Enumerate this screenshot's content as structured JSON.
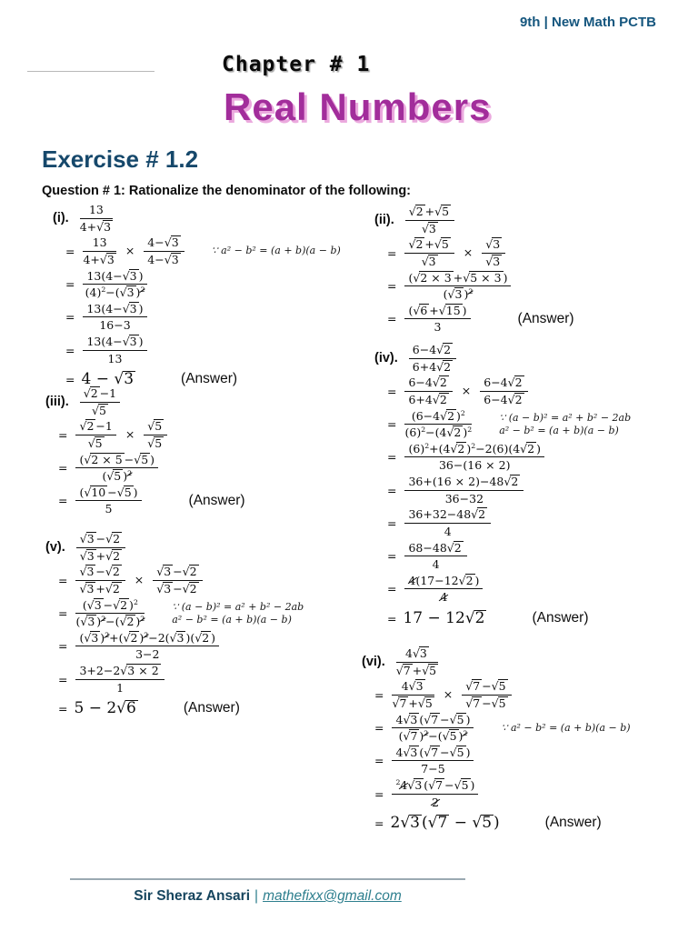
{
  "header": {
    "course": "9th | New Math PCTB",
    "chapter": "Chapter # 1",
    "title": "Real Numbers"
  },
  "exercise": {
    "heading": "Exercise # 1.2",
    "question": "Question # 1: Rationalize the denominator of the following:"
  },
  "colors": {
    "course_blue": "#15567E",
    "heading_teal": "#16486B",
    "title_pink": "#A22D9B",
    "title_pink_shadow": "#EBA9DE",
    "footer_teal": "#2E7F8E",
    "footer_navy": "#16455E"
  },
  "problems": [
    {
      "id": "i",
      "side": "left",
      "lines": [
        {
          "label": "(i).",
          "expr": "@f{13}{4+@r{3}}"
        },
        {
          "eq": "=",
          "expr": "@f{13}{4+@r{3}} @x @f{4−@r{3}}{4−@r{3}}",
          "notes": [
            "∵ a² − b² = (a + b)(a − b)"
          ]
        },
        {
          "eq": "=",
          "expr": "@f{13(4−@r{3})}{(4)@s{2}−(@r{3})@s{@k{2}}}"
        },
        {
          "eq": "=",
          "expr": "@f{13(4−@r{3})}{16−3}"
        },
        {
          "eq": "=",
          "expr": "@f{13(4−@r{3})}{13}"
        },
        {
          "eq": "=",
          "expr": "4 − @r{3}",
          "big": true,
          "answer": "(Answer)"
        }
      ]
    },
    {
      "id": "iii",
      "side": "left",
      "lines": [
        {
          "label": "(iii).",
          "expr": "@f{@r{2}−1}{@r{5}}"
        },
        {
          "eq": "=",
          "expr": "@f{@r{2}−1}{@r{5}} @x @f{@r{5}}{@r{5}}"
        },
        {
          "eq": "=",
          "expr": "@f{(@r{2@x5}−@r{5})}{(@r{5})@s{@k{2}}}"
        },
        {
          "eq": "=",
          "expr": "@f{(@r{10}−@r{5})}{5}",
          "answer": "(Answer)"
        }
      ]
    },
    {
      "id": "v",
      "side": "left",
      "lines": [
        {
          "label": "(v).",
          "expr": "@f{@r{3}−@r{2}}{@r{3}+@r{2}}"
        },
        {
          "eq": "=",
          "expr": "@f{@r{3}−@r{2}}{@r{3}+@r{2}} @x @f{@r{3}−@r{2}}{@r{3}−@r{2}}"
        },
        {
          "eq": "=",
          "expr": "@f{(@r{3}−@r{2})@s{2}}{(@r{3})@s{@k{2}}−(@r{2})@s{@k{2}}}",
          "notes": [
            "∵ (a − b)² = a² + b² − 2ab",
            "a² − b² = (a + b)(a − b)"
          ]
        },
        {
          "eq": "=",
          "expr": "@f{(@r{3})@s{@k{2}}+(@r{2})@s{@k{2}}−2(@r{3})(@r{2})}{3−2}"
        },
        {
          "eq": "=",
          "expr": "@f{3+2−2@r{3@x2}}{1}"
        },
        {
          "eq": "=",
          "expr": "5 − 2@r{6}",
          "big": true,
          "answer": "(Answer)"
        }
      ]
    },
    {
      "id": "ii",
      "side": "right",
      "lines": [
        {
          "label": "(ii).",
          "expr": "@f{@r{2}+@r{5}}{@r{3}}"
        },
        {
          "eq": "=",
          "expr": "@f{@r{2}+@r{5}}{@r{3}} @x @f{@r{3}}{@r{3}}"
        },
        {
          "eq": "=",
          "expr": "@f{(@r{2@x3}+@r{5@x3})}{(@r{3})@s{@k{2}}}"
        },
        {
          "eq": "=",
          "expr": "@f{(@r{6}+@r{15})}{3}",
          "answer": "(Answer)"
        }
      ]
    },
    {
      "id": "iv",
      "side": "right",
      "lines": [
        {
          "label": "(iv).",
          "expr": "@f{6−4@r{2}}{6+4@r{2}}"
        },
        {
          "eq": "=",
          "expr": "@f{6−4@r{2}}{6+4@r{2}} @x @f{6−4@r{2}}{6−4@r{2}}"
        },
        {
          "eq": "=",
          "expr": "@f{(6−4@r{2})@s{2}}{(6)@s{2}−(4@r{2})@s{2}}",
          "notes": [
            "∵ (a − b)² = a² + b² − 2ab",
            "a² − b² = (a + b)(a − b)"
          ]
        },
        {
          "eq": "=",
          "expr": "@f{(6)@s{2}+(4@r{2})@s{2}−2(6)(4@r{2})}{36−(16@x2)}"
        },
        {
          "eq": "=",
          "expr": "@f{36+(16@x2)−48@r{2}}{36−32}"
        },
        {
          "eq": "=",
          "expr": "@f{36+32−48@r{2}}{4}"
        },
        {
          "eq": "=",
          "expr": "@f{68−48@r{2}}{4}"
        },
        {
          "eq": "=",
          "expr": "@f{@k{4}(17−12@r{2})}{@k{4}}"
        },
        {
          "eq": "=",
          "expr": "17 − 12@r{2}",
          "big": true,
          "answer": "(Answer)"
        }
      ]
    },
    {
      "id": "vi",
      "side": "right",
      "lines": [
        {
          "label": "(vi).",
          "expr": "@f{4@r{3}}{@r{7}+@r{5}}"
        },
        {
          "eq": "=",
          "expr": "@f{4@r{3}}{@r{7}+@r{5}} @x @f{@r{7}−@r{5}}{@r{7}−@r{5}}"
        },
        {
          "eq": "=",
          "expr": "@f{4@r{3}(@r{7}−@r{5})}{(@r{7})@s{@k{2}}−(@r{5})@s{@k{2}}}",
          "notes": [
            "∵ a² − b² = (a + b)(a − b)"
          ]
        },
        {
          "eq": "=",
          "expr": "@f{4@r{3}(@r{7}−@r{5})}{7−5}"
        },
        {
          "eq": "=",
          "expr": "@f{@s{2}@k{4}@r{3}(@r{7}−@r{5})}{@k{2}}"
        },
        {
          "eq": "=",
          "expr": "2@r{3}(@r{7} − @r{5})",
          "big": true,
          "answer": "(Answer)"
        }
      ]
    }
  ],
  "footer": {
    "author": "Sir Sheraz Ansari",
    "separator": "|",
    "email": "mathefixx@gmail.com"
  }
}
